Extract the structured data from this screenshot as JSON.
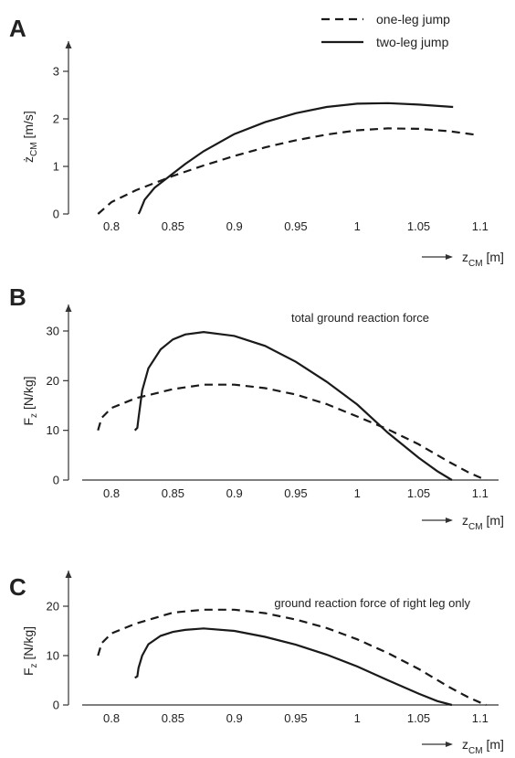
{
  "legend": [
    {
      "label": "one-leg jump",
      "style": "dashed"
    },
    {
      "label": "two-leg jump",
      "style": "solid"
    }
  ],
  "chart_data": [
    {
      "panel": "A",
      "type": "line",
      "title": "",
      "ylabel": "ż",
      "ylabel_sub": "CM",
      "ylabel_unit": "[m/s]",
      "xlabel": "z",
      "xlabel_sub": "CM",
      "xlabel_unit": "[m]",
      "xlim": [
        0.765,
        1.115
      ],
      "ylim": [
        0,
        3.5
      ],
      "xticks": [
        0.8,
        0.85,
        0.9,
        0.95,
        1,
        1.05,
        1.1
      ],
      "xtick_labels": [
        "0.8",
        "0.85",
        "0.9",
        "0.95",
        "1",
        "1.05",
        "1.1"
      ],
      "yticks": [
        0,
        1,
        2,
        3
      ],
      "ytick_labels": [
        "0",
        "1",
        "2",
        "3"
      ],
      "series": [
        {
          "name": "one-leg jump",
          "style": "dashed",
          "x": [
            0.789,
            0.8,
            0.82,
            0.85,
            0.875,
            0.9,
            0.925,
            0.95,
            0.975,
            1.0,
            1.025,
            1.05,
            1.075,
            1.098
          ],
          "y": [
            0.0,
            0.25,
            0.5,
            0.8,
            1.02,
            1.22,
            1.4,
            1.55,
            1.67,
            1.76,
            1.8,
            1.79,
            1.74,
            1.66
          ]
        },
        {
          "name": "two-leg jump",
          "style": "solid",
          "x": [
            0.822,
            0.823,
            0.827,
            0.835,
            0.85,
            0.86,
            0.875,
            0.9,
            0.925,
            0.95,
            0.975,
            1.0,
            1.025,
            1.05,
            1.078
          ],
          "y": [
            0.0,
            0.05,
            0.3,
            0.55,
            0.85,
            1.05,
            1.32,
            1.68,
            1.93,
            2.12,
            2.25,
            2.32,
            2.33,
            2.3,
            2.25
          ]
        }
      ]
    },
    {
      "panel": "B",
      "type": "line",
      "title": "total ground reaction force",
      "ylabel": "F",
      "ylabel_sub": "z",
      "ylabel_unit": "[N/kg]",
      "xlabel": "z",
      "xlabel_sub": "CM",
      "xlabel_unit": "[m]",
      "xlim": [
        0.765,
        1.115
      ],
      "ylim": [
        0,
        35
      ],
      "xticks": [
        0.8,
        0.85,
        0.9,
        0.95,
        1,
        1.05,
        1.1
      ],
      "xtick_labels": [
        "0.8",
        "0.85",
        "0.9",
        "0.95",
        "1",
        "1.05",
        "1.1"
      ],
      "yticks": [
        0,
        10,
        20,
        30
      ],
      "ytick_labels": [
        "0",
        "10",
        "20",
        "30"
      ],
      "series": [
        {
          "name": "one-leg jump",
          "style": "dashed",
          "x": [
            0.789,
            0.792,
            0.8,
            0.82,
            0.85,
            0.875,
            0.9,
            0.925,
            0.95,
            0.975,
            1.0,
            1.025,
            1.05,
            1.075,
            1.09,
            1.1,
            1.105
          ],
          "y": [
            10.0,
            12.5,
            14.5,
            16.5,
            18.3,
            19.2,
            19.2,
            18.5,
            17.2,
            15.3,
            12.8,
            10.2,
            7.2,
            3.6,
            1.6,
            0.5,
            0.0
          ]
        },
        {
          "name": "two-leg jump",
          "style": "solid",
          "x": [
            0.819,
            0.821,
            0.822,
            0.825,
            0.83,
            0.84,
            0.85,
            0.86,
            0.875,
            0.9,
            0.925,
            0.95,
            0.975,
            1.0,
            1.025,
            1.05,
            1.065,
            1.077
          ],
          "y": [
            10.0,
            10.5,
            12.5,
            18.0,
            22.5,
            26.3,
            28.3,
            29.3,
            29.8,
            29.0,
            27.0,
            23.8,
            19.8,
            15.2,
            9.5,
            4.5,
            1.8,
            0.0
          ]
        }
      ]
    },
    {
      "panel": "C",
      "type": "line",
      "title": "ground reaction force of right leg only",
      "ylabel": "F",
      "ylabel_sub": "z",
      "ylabel_unit": "[N/kg]",
      "xlabel": "z",
      "xlabel_sub": "CM",
      "xlabel_unit": "[m]",
      "xlim": [
        0.765,
        1.115
      ],
      "ylim": [
        0,
        25
      ],
      "xticks": [
        0.8,
        0.85,
        0.9,
        0.95,
        1,
        1.05,
        1.1
      ],
      "xtick_labels": [
        "0.8",
        "0.85",
        "0.9",
        "0.95",
        "1",
        "1.05",
        "1.1"
      ],
      "yticks": [
        0,
        10,
        20
      ],
      "ytick_labels": [
        "0",
        "10",
        "20"
      ],
      "series": [
        {
          "name": "one-leg jump",
          "style": "dashed",
          "x": [
            0.789,
            0.792,
            0.8,
            0.82,
            0.85,
            0.875,
            0.9,
            0.925,
            0.95,
            0.975,
            1.0,
            1.025,
            1.05,
            1.075,
            1.09,
            1.1,
            1.105
          ],
          "y": [
            10.0,
            12.5,
            14.5,
            16.5,
            18.7,
            19.3,
            19.3,
            18.6,
            17.3,
            15.6,
            13.3,
            10.5,
            7.3,
            3.6,
            1.6,
            0.5,
            0.0
          ]
        },
        {
          "name": "two-leg jump",
          "style": "solid",
          "x": [
            0.819,
            0.821,
            0.822,
            0.825,
            0.83,
            0.84,
            0.85,
            0.86,
            0.875,
            0.9,
            0.925,
            0.95,
            0.975,
            1.0,
            1.025,
            1.05,
            1.065,
            1.077
          ],
          "y": [
            5.5,
            5.8,
            7.5,
            10.0,
            12.3,
            14.0,
            14.8,
            15.2,
            15.5,
            15.0,
            13.8,
            12.2,
            10.2,
            7.8,
            5.0,
            2.3,
            0.8,
            0.0
          ]
        }
      ]
    }
  ]
}
